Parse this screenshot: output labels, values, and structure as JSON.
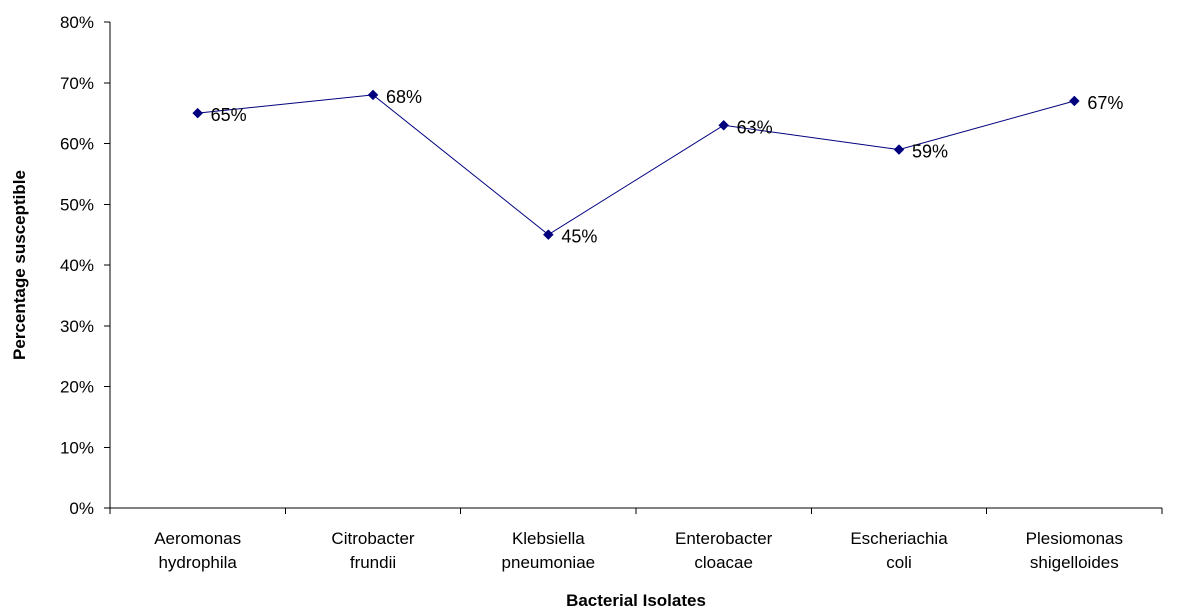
{
  "chart_data": {
    "type": "line",
    "title": "",
    "xlabel": "Bacterial Isolates",
    "ylabel": "Percentage susceptible",
    "ylim": [
      0,
      80
    ],
    "ytick_values": [
      0,
      10,
      20,
      30,
      40,
      50,
      60,
      70,
      80
    ],
    "ytick_labels": [
      "0%",
      "10%",
      "20%",
      "30%",
      "40%",
      "50%",
      "60%",
      "70%",
      "80%"
    ],
    "categories": [
      [
        "Aeromonas",
        "hydrophila"
      ],
      [
        "Citrobacter",
        "frundii"
      ],
      [
        "Klebsiella",
        "pneumoniae"
      ],
      [
        "Enterobacter",
        "cloacae"
      ],
      [
        "Escheriachia",
        "coli"
      ],
      [
        "Plesiomonas",
        "shigelloides"
      ]
    ],
    "series": [
      {
        "values": [
          65,
          68,
          45,
          63,
          59,
          67
        ],
        "data_labels": [
          "65%",
          "68%",
          "45%",
          "63%",
          "59%",
          "67%"
        ],
        "color": "#00007F",
        "marker": "diamond"
      }
    ],
    "grid": false,
    "legend": "none"
  }
}
